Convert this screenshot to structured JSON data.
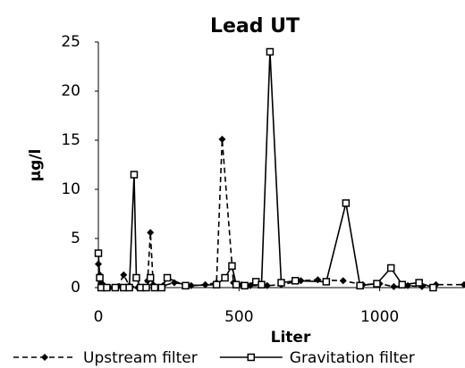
{
  "chart_data": {
    "type": "line",
    "title": "Lead UT",
    "x_label": "Liter",
    "y_label": "µg/l",
    "xlim": [
      0,
      1300
    ],
    "xticks": [
      0,
      500,
      1000
    ],
    "ylim": [
      0,
      25
    ],
    "yticks": [
      0,
      5,
      10,
      15,
      20,
      25
    ],
    "legend": "bottom",
    "series": [
      {
        "name": "Upstream filter",
        "color": "#000000",
        "line_style": "dashed",
        "marker": "diamond",
        "x": [
          0,
          5,
          10,
          20,
          40,
          70,
          90,
          110,
          140,
          175,
          185,
          195,
          230,
          270,
          330,
          380,
          420,
          440,
          480,
          510,
          540,
          600,
          650,
          720,
          780,
          870,
          940,
          1000,
          1050,
          1100,
          1150,
          1200,
          1300
        ],
        "values": [
          2.4,
          1.3,
          0.5,
          0.2,
          0,
          0.1,
          1.3,
          0.2,
          0,
          0.7,
          5.6,
          0.3,
          0.2,
          0.5,
          0.2,
          0.3,
          0.5,
          15.1,
          0.5,
          0.3,
          0.2,
          0.2,
          0.3,
          0.7,
          0.8,
          0.7,
          0.3,
          0.4,
          0.1,
          0.2,
          0.1,
          0.3,
          0.3
        ]
      },
      {
        "name": "Gravitation filter",
        "color": "#000000",
        "line_style": "solid",
        "marker": "square",
        "x": [
          0,
          5,
          10,
          30,
          60,
          90,
          110,
          127,
          135,
          150,
          170,
          185,
          200,
          225,
          245,
          310,
          420,
          450,
          475,
          490,
          520,
          560,
          580,
          610,
          650,
          700,
          810,
          880,
          930,
          990,
          1040,
          1080,
          1140,
          1190
        ],
        "values": [
          3.5,
          1,
          0,
          0,
          0,
          0,
          0,
          11.5,
          1,
          0,
          0,
          1,
          0,
          0,
          1,
          0.2,
          0.3,
          1,
          2.2,
          0.3,
          0.2,
          0.6,
          0.3,
          24,
          0.5,
          0.7,
          0.6,
          8.6,
          0.2,
          0.4,
          2,
          0.3,
          0.5,
          0
        ]
      }
    ]
  }
}
